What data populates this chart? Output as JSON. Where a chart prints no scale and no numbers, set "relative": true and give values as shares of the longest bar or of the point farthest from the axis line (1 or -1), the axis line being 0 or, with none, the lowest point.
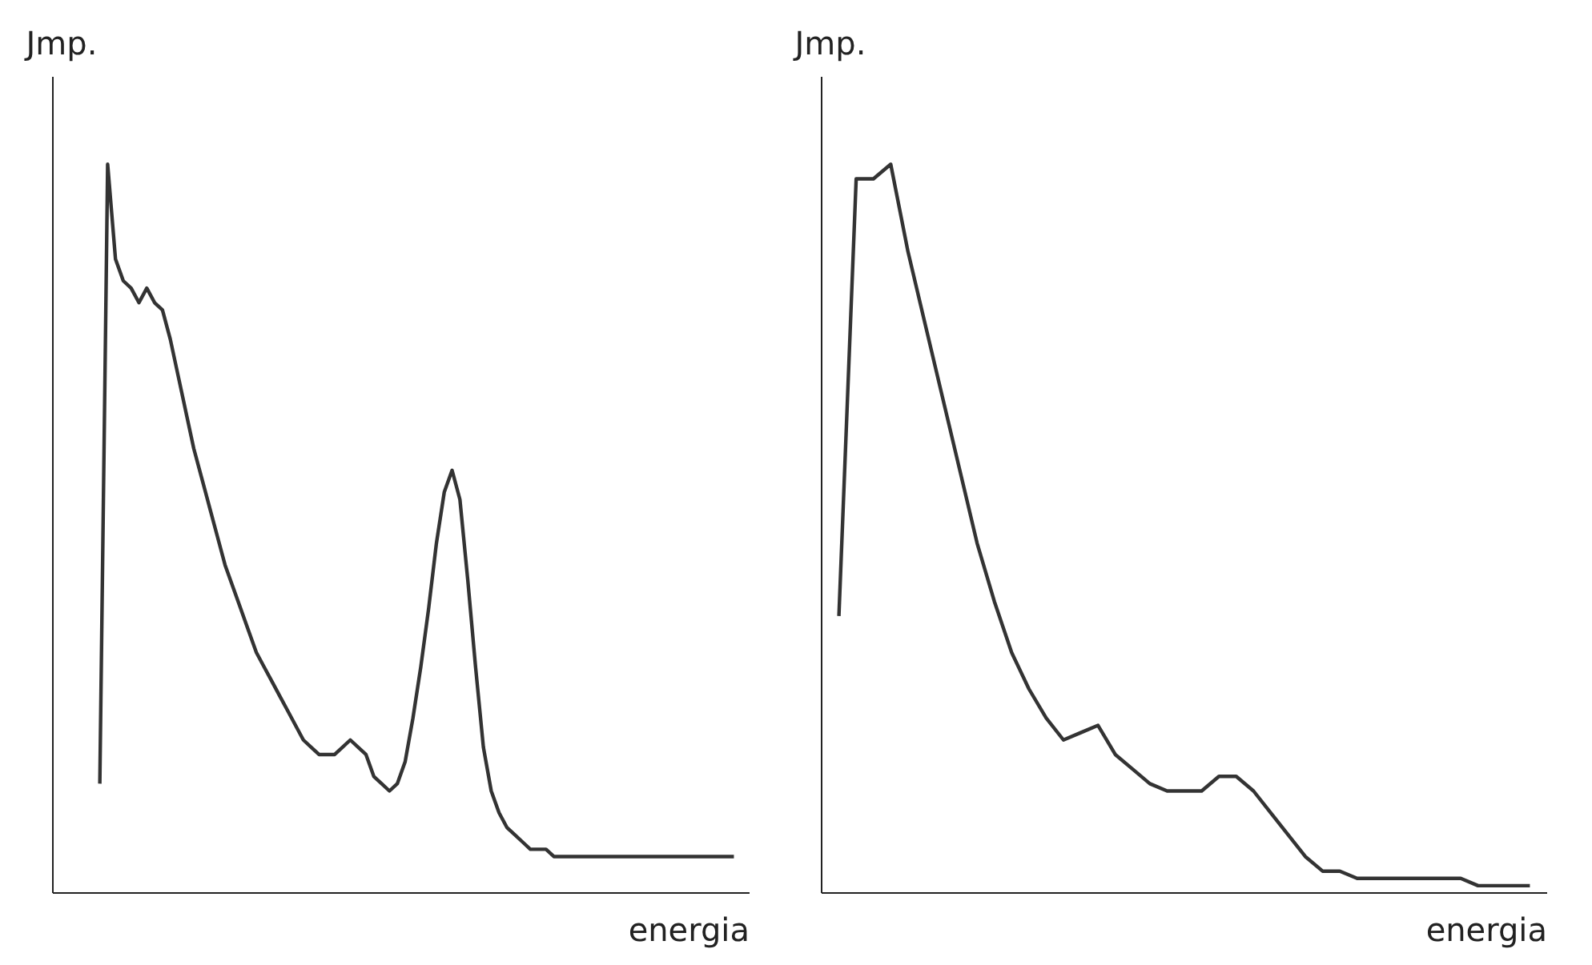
{
  "chart_data": [
    {
      "type": "line",
      "relative": true,
      "ylabel": "Jmp.",
      "xlabel": "energia",
      "categories": [
        null,
        null,
        null,
        null,
        null,
        null,
        null,
        null,
        null,
        null,
        null,
        null,
        null,
        null,
        null,
        null,
        null,
        null,
        null,
        null,
        null,
        null,
        null,
        null,
        null,
        null,
        null,
        null,
        null,
        null,
        null,
        null,
        null,
        null,
        null,
        null,
        null,
        null,
        null,
        null,
        null,
        null,
        null,
        null,
        null,
        null,
        null,
        null,
        null,
        null,
        null,
        null,
        null,
        null,
        null,
        null,
        null,
        null,
        null,
        null,
        null,
        null,
        null,
        null,
        null,
        null,
        null,
        null,
        null,
        null,
        null,
        null,
        null,
        null,
        null,
        null,
        null,
        null,
        null,
        null,
        null,
        null,
        null,
        null,
        null,
        null,
        null,
        null,
        null,
        null
      ],
      "series": [
        {
          "color": "#333333",
          "values": [
            null,
            null,
            null,
            null,
            null,
            null,
            0.15,
            1.0,
            0.87,
            0.84,
            0.83,
            0.81,
            0.83,
            0.81,
            0.8,
            0.76,
            0.71,
            0.66,
            0.61,
            0.57,
            0.53,
            0.49,
            0.45,
            0.42,
            0.39,
            0.36,
            0.33,
            0.31,
            0.29,
            0.27,
            0.25,
            0.23,
            0.21,
            0.2,
            0.19,
            0.19,
            0.19,
            0.2,
            0.21,
            0.2,
            0.19,
            0.16,
            0.15,
            0.14,
            0.15,
            0.18,
            0.24,
            0.31,
            0.39,
            0.48,
            0.55,
            0.58,
            0.54,
            0.43,
            0.31,
            0.2,
            0.14,
            0.11,
            0.09,
            0.08,
            0.07,
            0.06,
            0.06,
            0.06,
            0.05,
            0.05,
            0.05,
            0.05,
            0.05,
            0.05,
            0.05,
            0.05,
            0.05,
            0.05,
            0.05,
            0.05,
            0.05,
            0.05,
            0.05,
            0.05,
            0.05,
            0.05,
            0.05,
            0.05,
            0.05,
            0.05,
            0.05,
            0.05,
            null,
            null
          ]
        }
      ]
    },
    {
      "type": "line",
      "relative": true,
      "ylabel": "Jmp.",
      "xlabel": "energia",
      "categories": [
        null,
        null,
        null,
        null,
        null,
        null,
        null,
        null,
        null,
        null,
        null,
        null,
        null,
        null,
        null,
        null,
        null,
        null,
        null,
        null,
        null,
        null,
        null,
        null,
        null,
        null,
        null,
        null,
        null,
        null,
        null,
        null,
        null,
        null,
        null,
        null,
        null,
        null,
        null,
        null,
        null,
        null,
        null
      ],
      "series": [
        {
          "color": "#333333",
          "values": [
            null,
            0.38,
            0.98,
            0.98,
            1.0,
            0.88,
            0.78,
            0.68,
            0.58,
            0.48,
            0.4,
            0.33,
            0.28,
            0.24,
            0.21,
            0.22,
            0.23,
            0.19,
            0.17,
            0.15,
            0.14,
            0.14,
            0.14,
            0.16,
            0.16,
            0.14,
            0.11,
            0.08,
            0.05,
            0.03,
            0.03,
            0.02,
            0.02,
            0.02,
            0.02,
            0.02,
            0.02,
            0.02,
            0.01,
            0.01,
            0.01,
            0.01,
            null
          ]
        }
      ]
    }
  ]
}
